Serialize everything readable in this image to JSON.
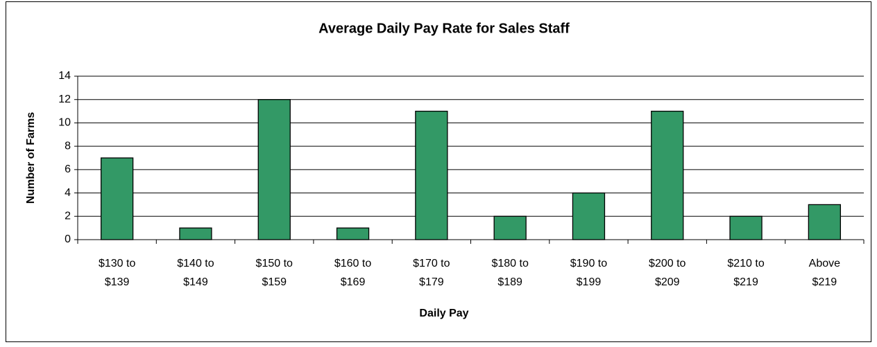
{
  "chart_data": {
    "type": "bar",
    "title": "Average Daily Pay Rate for Sales Staff",
    "x_label": "Daily Pay",
    "y_label": "Number of Farms",
    "categories": [
      [
        "$130 to",
        "$139"
      ],
      [
        "$140 to",
        "$149"
      ],
      [
        "$150 to",
        "$159"
      ],
      [
        "$160 to",
        "$169"
      ],
      [
        "$170 to",
        "$179"
      ],
      [
        "$180 to",
        "$189"
      ],
      [
        "$190 to",
        "$199"
      ],
      [
        "$200 to",
        "$209"
      ],
      [
        "$210 to",
        "$219"
      ],
      [
        "Above",
        "$219"
      ]
    ],
    "values": [
      7,
      1,
      12,
      1,
      11,
      2,
      4,
      11,
      2,
      3
    ],
    "color": "#339966",
    "ylim": [
      0,
      14
    ],
    "yticks": [
      0,
      2,
      4,
      6,
      8,
      10,
      12,
      14
    ],
    "grid": true
  }
}
